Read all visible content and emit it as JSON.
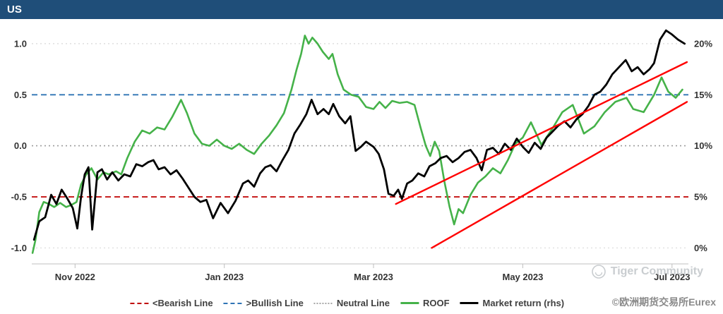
{
  "header": {
    "title": "US",
    "bar_color": "#1F4E79"
  },
  "legend": {
    "items": [
      {
        "label": "<Bearish Line",
        "color": "#C00000",
        "style": "dashed"
      },
      {
        "label": ">Bullish Line",
        "color": "#2E74B5",
        "style": "dashed"
      },
      {
        "label": "Neutral Line",
        "color": "#A6A6A6",
        "style": "dotted"
      },
      {
        "label": "ROOF",
        "color": "#45B249",
        "style": "solid"
      },
      {
        "label": "Market return (rhs)",
        "color": "#000000",
        "style": "solid"
      }
    ]
  },
  "watermark": {
    "community": "Tiger Community",
    "copyright": "©欧洲期货交易所Eurex"
  },
  "chart_data": {
    "type": "line",
    "title": "US",
    "x_axis": {
      "range": [
        0.42,
        9.22
      ],
      "ticks": [
        {
          "pos": 1,
          "label": "Nov 2022"
        },
        {
          "pos": 3,
          "label": "Jan 2023"
        },
        {
          "pos": 5,
          "label": "Mar 2023"
        },
        {
          "pos": 7,
          "label": "May 2023"
        },
        {
          "pos": 9,
          "label": "Jul 2023"
        }
      ]
    },
    "left_axis": {
      "range": [
        -1.15,
        1.2
      ],
      "ticks": [
        {
          "pos": 1.0,
          "label": "1.0"
        },
        {
          "pos": 0.5,
          "label": "0.5"
        },
        {
          "pos": 0.0,
          "label": "0.0"
        },
        {
          "pos": -0.5,
          "label": "-0.5"
        },
        {
          "pos": -1.0,
          "label": "-1.0"
        }
      ]
    },
    "right_axis": {
      "range": [
        -1.5,
        22
      ],
      "ticks": [
        {
          "pos": 20,
          "label": "20%"
        },
        {
          "pos": 15,
          "label": "15%"
        },
        {
          "pos": 10,
          "label": "10%"
        },
        {
          "pos": 5,
          "label": "5%"
        },
        {
          "pos": 0,
          "label": "0%"
        }
      ]
    },
    "reference_lines": [
      {
        "name": "grid-top",
        "axis": "left",
        "value": 1.0,
        "color": "#D9D9D9",
        "style": "dotted",
        "width": 1.2
      },
      {
        "name": "grid-bottom",
        "axis": "left",
        "value": -1.0,
        "color": "#D9D9D9",
        "style": "dotted",
        "width": 1.2
      },
      {
        "name": "neutral",
        "axis": "left",
        "value": 0.0,
        "color": "#9B9B9B",
        "style": "dotted",
        "width": 1.6
      },
      {
        "name": "bullish",
        "axis": "left",
        "value": 0.5,
        "color": "#2E74B5",
        "style": "dashed",
        "width": 1.8
      },
      {
        "name": "bearish",
        "axis": "left",
        "value": -0.5,
        "color": "#C00000",
        "style": "dashed",
        "width": 1.8
      }
    ],
    "series": [
      {
        "name": "roof-line",
        "label": "ROOF",
        "axis": "left",
        "color": "#45B249",
        "width": 2.6,
        "points": [
          [
            0.43,
            -1.05
          ],
          [
            0.47,
            -0.92
          ],
          [
            0.52,
            -0.65
          ],
          [
            0.58,
            -0.55
          ],
          [
            0.65,
            -0.57
          ],
          [
            0.72,
            -0.6
          ],
          [
            0.8,
            -0.56
          ],
          [
            0.88,
            -0.6
          ],
          [
            0.95,
            -0.58
          ],
          [
            1.02,
            -0.55
          ],
          [
            1.08,
            -0.38
          ],
          [
            1.15,
            -0.28
          ],
          [
            1.22,
            -0.22
          ],
          [
            1.3,
            -0.33
          ],
          [
            1.38,
            -0.26
          ],
          [
            1.45,
            -0.28
          ],
          [
            1.55,
            -0.25
          ],
          [
            1.62,
            -0.28
          ],
          [
            1.7,
            -0.12
          ],
          [
            1.8,
            0.04
          ],
          [
            1.9,
            0.15
          ],
          [
            2.0,
            0.12
          ],
          [
            2.1,
            0.18
          ],
          [
            2.2,
            0.16
          ],
          [
            2.3,
            0.28
          ],
          [
            2.42,
            0.45
          ],
          [
            2.5,
            0.32
          ],
          [
            2.6,
            0.12
          ],
          [
            2.7,
            0.02
          ],
          [
            2.8,
            0.0
          ],
          [
            2.9,
            0.06
          ],
          [
            3.0,
            0.0
          ],
          [
            3.1,
            -0.03
          ],
          [
            3.2,
            0.02
          ],
          [
            3.3,
            -0.04
          ],
          [
            3.4,
            -0.08
          ],
          [
            3.5,
            0.02
          ],
          [
            3.6,
            0.1
          ],
          [
            3.7,
            0.2
          ],
          [
            3.8,
            0.32
          ],
          [
            3.9,
            0.55
          ],
          [
            3.97,
            0.75
          ],
          [
            4.03,
            0.9
          ],
          [
            4.08,
            1.08
          ],
          [
            4.13,
            1.0
          ],
          [
            4.18,
            1.06
          ],
          [
            4.25,
            1.0
          ],
          [
            4.32,
            0.92
          ],
          [
            4.4,
            0.85
          ],
          [
            4.45,
            0.9
          ],
          [
            4.52,
            0.7
          ],
          [
            4.6,
            0.55
          ],
          [
            4.7,
            0.5
          ],
          [
            4.8,
            0.48
          ],
          [
            4.9,
            0.38
          ],
          [
            5.0,
            0.36
          ],
          [
            5.08,
            0.43
          ],
          [
            5.16,
            0.37
          ],
          [
            5.25,
            0.44
          ],
          [
            5.35,
            0.42
          ],
          [
            5.45,
            0.43
          ],
          [
            5.55,
            0.4
          ],
          [
            5.63,
            0.18
          ],
          [
            5.7,
            0.0
          ],
          [
            5.76,
            -0.1
          ],
          [
            5.82,
            0.04
          ],
          [
            5.88,
            -0.05
          ],
          [
            5.95,
            -0.35
          ],
          [
            6.02,
            -0.6
          ],
          [
            6.08,
            -0.77
          ],
          [
            6.14,
            -0.62
          ],
          [
            6.2,
            -0.66
          ],
          [
            6.3,
            -0.48
          ],
          [
            6.4,
            -0.36
          ],
          [
            6.5,
            -0.3
          ],
          [
            6.6,
            -0.22
          ],
          [
            6.7,
            -0.27
          ],
          [
            6.8,
            -0.14
          ],
          [
            6.9,
            0.02
          ],
          [
            7.0,
            0.08
          ],
          [
            7.11,
            0.23
          ],
          [
            7.25,
            0.01
          ],
          [
            7.39,
            0.16
          ],
          [
            7.53,
            0.33
          ],
          [
            7.67,
            0.4
          ],
          [
            7.82,
            0.12
          ],
          [
            7.96,
            0.19
          ],
          [
            8.1,
            0.33
          ],
          [
            8.24,
            0.43
          ],
          [
            8.39,
            0.47
          ],
          [
            8.48,
            0.36
          ],
          [
            8.62,
            0.33
          ],
          [
            8.76,
            0.5
          ],
          [
            8.86,
            0.67
          ],
          [
            8.95,
            0.53
          ],
          [
            9.05,
            0.47
          ],
          [
            9.14,
            0.55
          ]
        ]
      },
      {
        "name": "market-return-line",
        "label": "Market return (rhs)",
        "axis": "right",
        "color": "#000000",
        "width": 2.8,
        "points": [
          [
            0.45,
            0.8
          ],
          [
            0.52,
            2.6
          ],
          [
            0.6,
            3.0
          ],
          [
            0.68,
            5.2
          ],
          [
            0.75,
            4.3
          ],
          [
            0.82,
            5.7
          ],
          [
            0.9,
            4.8
          ],
          [
            0.97,
            3.9
          ],
          [
            1.03,
            1.9
          ],
          [
            1.08,
            5.0
          ],
          [
            1.13,
            7.2
          ],
          [
            1.18,
            7.9
          ],
          [
            1.23,
            1.8
          ],
          [
            1.3,
            7.4
          ],
          [
            1.36,
            7.7
          ],
          [
            1.43,
            6.7
          ],
          [
            1.5,
            7.4
          ],
          [
            1.58,
            6.6
          ],
          [
            1.66,
            7.2
          ],
          [
            1.74,
            7.0
          ],
          [
            1.82,
            8.2
          ],
          [
            1.9,
            8.0
          ],
          [
            1.98,
            8.4
          ],
          [
            2.05,
            8.6
          ],
          [
            2.12,
            7.7
          ],
          [
            2.2,
            7.9
          ],
          [
            2.28,
            7.2
          ],
          [
            2.36,
            7.6
          ],
          [
            2.44,
            6.8
          ],
          [
            2.52,
            5.9
          ],
          [
            2.6,
            5.0
          ],
          [
            2.68,
            4.5
          ],
          [
            2.76,
            4.7
          ],
          [
            2.85,
            2.9
          ],
          [
            2.95,
            4.4
          ],
          [
            3.05,
            3.4
          ],
          [
            3.15,
            4.6
          ],
          [
            3.25,
            6.3
          ],
          [
            3.32,
            6.6
          ],
          [
            3.4,
            6.0
          ],
          [
            3.48,
            7.3
          ],
          [
            3.55,
            7.9
          ],
          [
            3.62,
            8.1
          ],
          [
            3.7,
            7.5
          ],
          [
            3.78,
            8.6
          ],
          [
            3.86,
            9.6
          ],
          [
            3.94,
            11.2
          ],
          [
            4.02,
            12.1
          ],
          [
            4.1,
            13.1
          ],
          [
            4.17,
            14.5
          ],
          [
            4.25,
            13.1
          ],
          [
            4.33,
            13.6
          ],
          [
            4.4,
            13.1
          ],
          [
            4.46,
            14.1
          ],
          [
            4.54,
            12.9
          ],
          [
            4.62,
            12.2
          ],
          [
            4.69,
            12.9
          ],
          [
            4.76,
            9.5
          ],
          [
            4.83,
            9.9
          ],
          [
            4.9,
            10.4
          ],
          [
            5.0,
            9.9
          ],
          [
            5.07,
            9.2
          ],
          [
            5.14,
            7.7
          ],
          [
            5.2,
            5.3
          ],
          [
            5.27,
            5.1
          ],
          [
            5.33,
            5.7
          ],
          [
            5.38,
            4.8
          ],
          [
            5.45,
            6.3
          ],
          [
            5.52,
            6.6
          ],
          [
            5.6,
            7.3
          ],
          [
            5.68,
            7.0
          ],
          [
            5.75,
            8.0
          ],
          [
            5.83,
            8.3
          ],
          [
            5.9,
            8.8
          ],
          [
            5.98,
            9.0
          ],
          [
            6.06,
            8.4
          ],
          [
            6.14,
            8.8
          ],
          [
            6.22,
            9.4
          ],
          [
            6.3,
            9.6
          ],
          [
            6.38,
            8.8
          ],
          [
            6.45,
            7.6
          ],
          [
            6.52,
            9.6
          ],
          [
            6.6,
            9.8
          ],
          [
            6.68,
            9.2
          ],
          [
            6.76,
            10.2
          ],
          [
            6.84,
            9.6
          ],
          [
            6.92,
            10.7
          ],
          [
            7.0,
            9.9
          ],
          [
            7.08,
            9.3
          ],
          [
            7.16,
            10.3
          ],
          [
            7.24,
            9.7
          ],
          [
            7.32,
            10.8
          ],
          [
            7.4,
            11.4
          ],
          [
            7.48,
            12.0
          ],
          [
            7.56,
            12.4
          ],
          [
            7.64,
            11.8
          ],
          [
            7.72,
            12.6
          ],
          [
            7.8,
            13.1
          ],
          [
            7.88,
            13.9
          ],
          [
            7.96,
            15.0
          ],
          [
            8.04,
            15.3
          ],
          [
            8.12,
            16.0
          ],
          [
            8.2,
            17.0
          ],
          [
            8.29,
            17.7
          ],
          [
            8.38,
            18.4
          ],
          [
            8.46,
            17.3
          ],
          [
            8.54,
            17.7
          ],
          [
            8.62,
            17.0
          ],
          [
            8.7,
            17.5
          ],
          [
            8.76,
            18.1
          ],
          [
            8.84,
            20.4
          ],
          [
            8.92,
            21.3
          ],
          [
            9.0,
            20.9
          ],
          [
            9.08,
            20.4
          ],
          [
            9.17,
            20.0
          ]
        ]
      },
      {
        "name": "trend-channel-upper-line",
        "label": "",
        "axis": "right",
        "color": "#FF0000",
        "width": 2.4,
        "points": [
          [
            5.3,
            4.3
          ],
          [
            9.2,
            18.2
          ]
        ]
      },
      {
        "name": "trend-channel-lower-line",
        "label": "",
        "axis": "right",
        "color": "#FF0000",
        "width": 2.4,
        "points": [
          [
            5.78,
            0.0
          ],
          [
            9.2,
            14.3
          ]
        ]
      }
    ]
  }
}
